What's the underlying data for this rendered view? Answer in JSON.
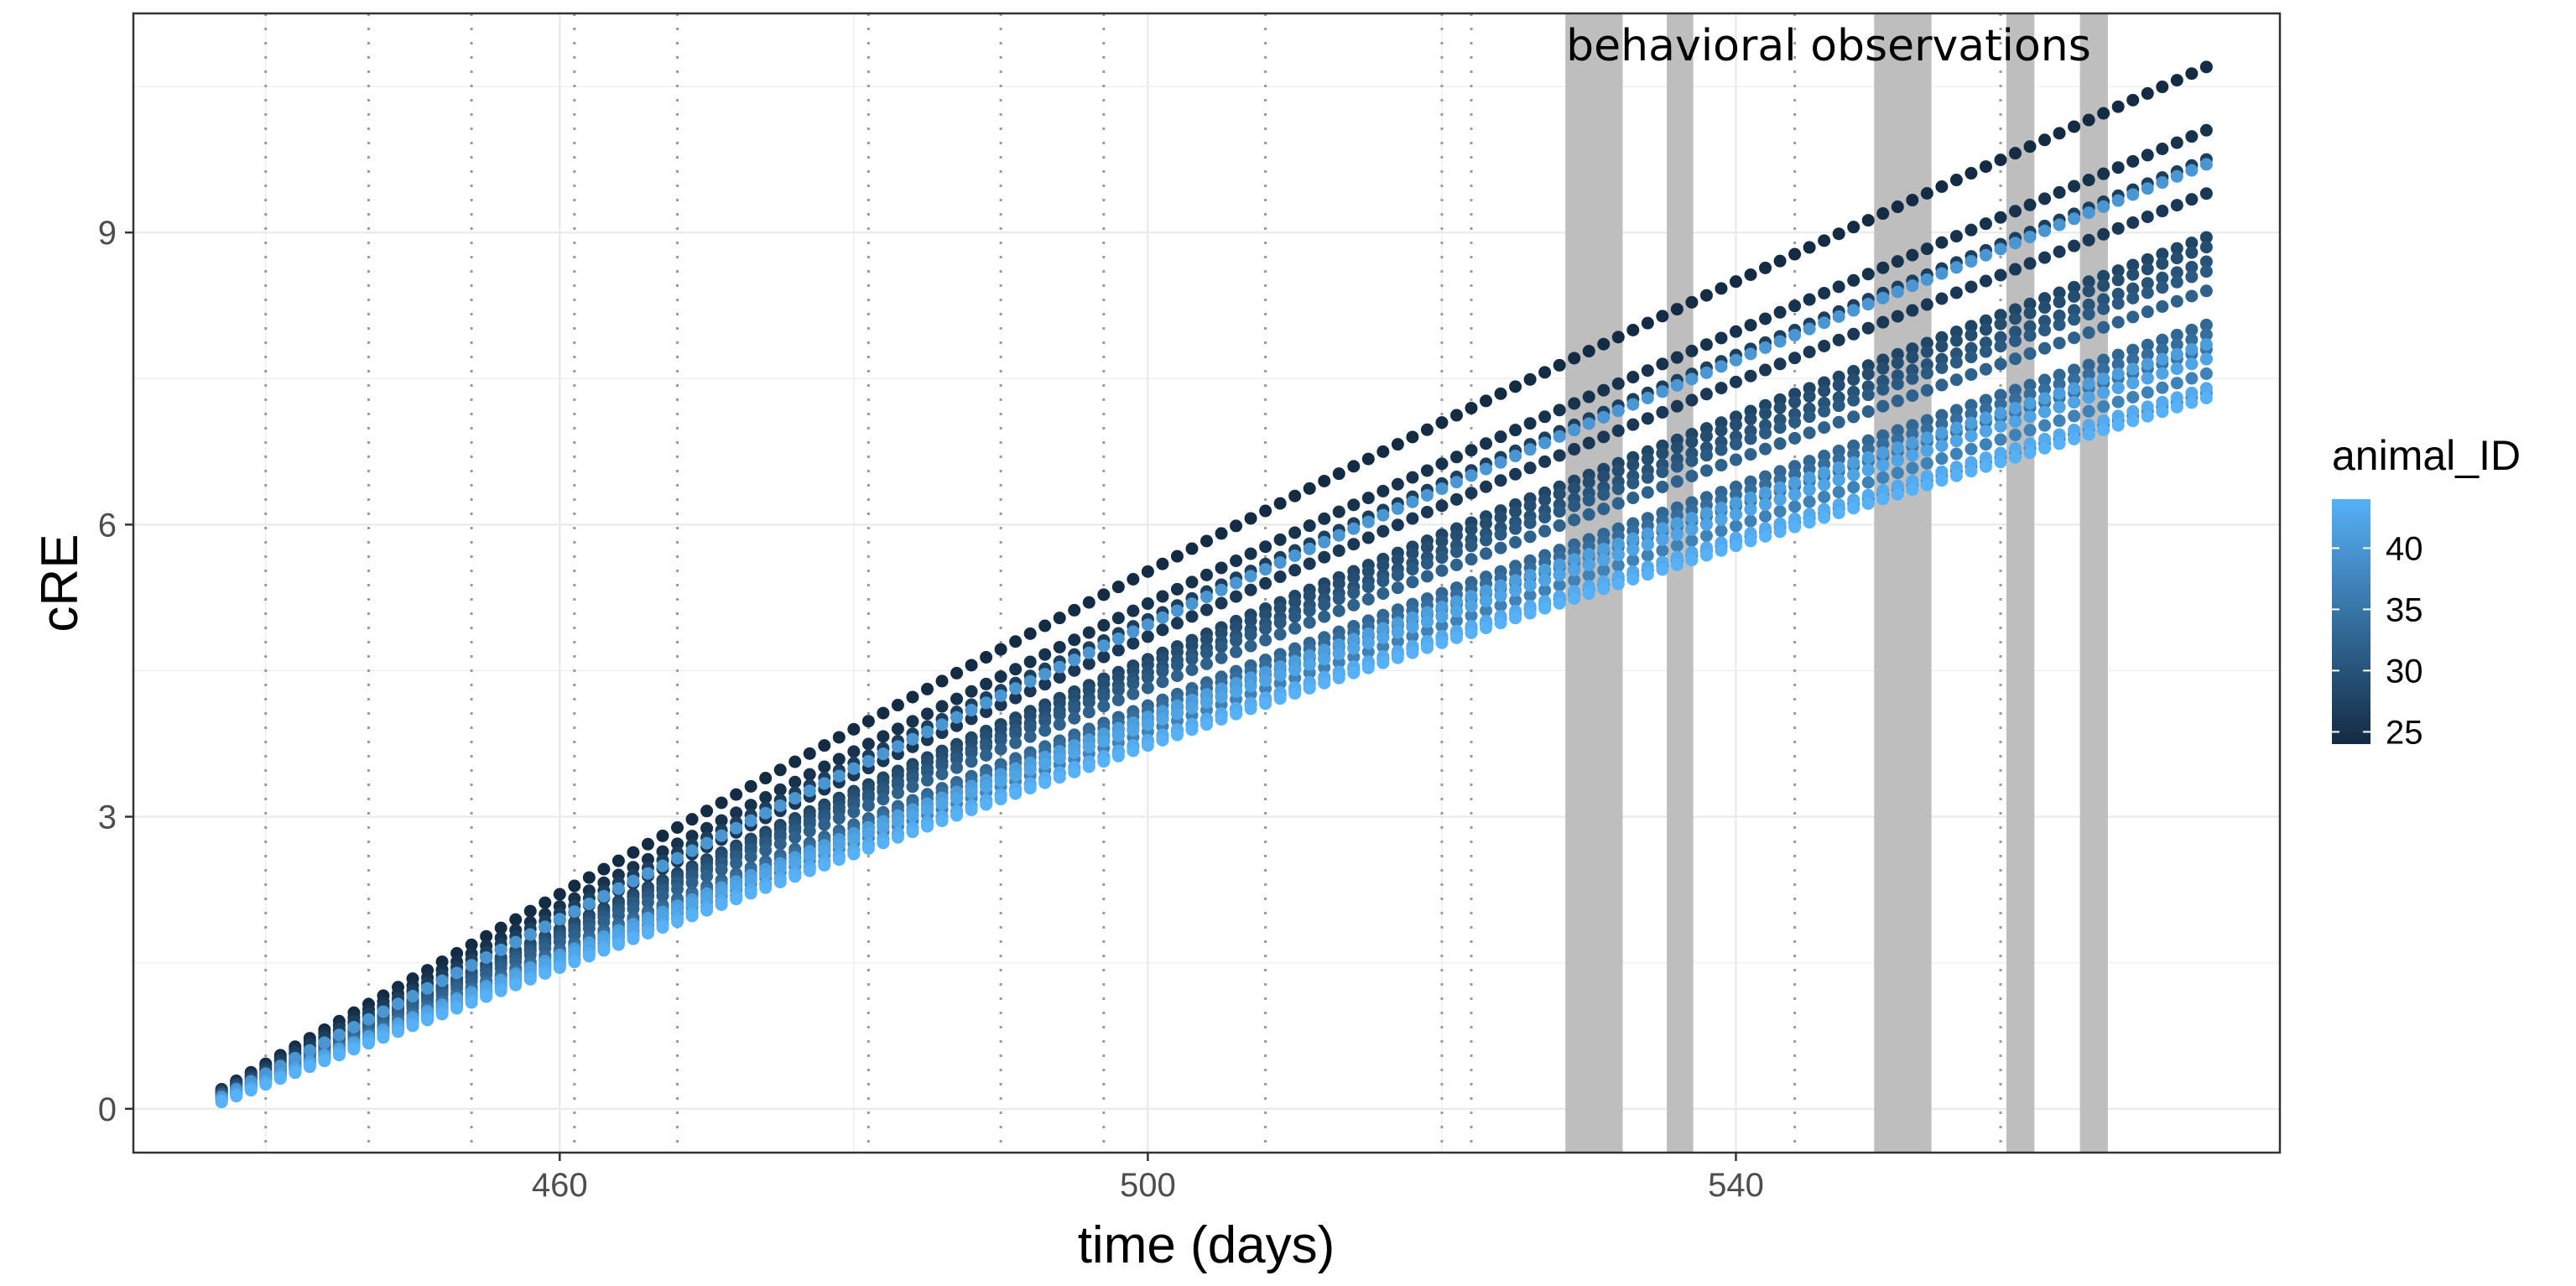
{
  "chart_data": {
    "type": "scatter",
    "title": "",
    "xlabel": "time (days)",
    "ylabel": "cRE",
    "xlim": [
      431,
      577
    ],
    "ylim": [
      -0.45,
      11.25
    ],
    "x_ticks": [
      460,
      500,
      540
    ],
    "y_ticks": [
      0,
      3,
      6,
      9
    ],
    "grid": true,
    "x_start": 437,
    "x_end": 572,
    "x_step": 1,
    "dotted_vlines": [
      440,
      447,
      454,
      461,
      468,
      481,
      490,
      497,
      508,
      520,
      522,
      530,
      537,
      544,
      553,
      558,
      564
    ],
    "shaded_regions": [
      [
        528.4,
        532.3
      ],
      [
        535.3,
        537.1
      ],
      [
        549.4,
        553.3
      ],
      [
        558.4,
        560.3
      ],
      [
        563.4,
        565.3
      ]
    ],
    "annotation": "behavioral observations",
    "legend": {
      "title": "animal_ID",
      "ticks": [
        25,
        30,
        35,
        40
      ],
      "min": 24,
      "max": 44,
      "position": "right",
      "low_color": "#132B43",
      "high_color": "#56B1F7"
    },
    "series": [
      {
        "name": "24",
        "start_value": 0.2,
        "end_value": 10.7
      },
      {
        "name": "25",
        "start_value": 0.2,
        "end_value": 10.05
      },
      {
        "name": "26",
        "start_value": 0.18,
        "end_value": 9.4
      },
      {
        "name": "27",
        "start_value": 0.18,
        "end_value": 9.75
      },
      {
        "name": "28",
        "start_value": 0.17,
        "end_value": 8.95
      },
      {
        "name": "29",
        "start_value": 0.16,
        "end_value": 8.85
      },
      {
        "name": "30",
        "start_value": 0.15,
        "end_value": 8.7
      },
      {
        "name": "31",
        "start_value": 0.15,
        "end_value": 8.6
      },
      {
        "name": "32",
        "start_value": 0.14,
        "end_value": 8.4
      },
      {
        "name": "33",
        "start_value": 0.13,
        "end_value": 8.05
      },
      {
        "name": "34",
        "start_value": 0.12,
        "end_value": 7.95
      },
      {
        "name": "35",
        "start_value": 0.12,
        "end_value": 7.8
      },
      {
        "name": "36",
        "start_value": 0.11,
        "end_value": 7.7
      },
      {
        "name": "37",
        "start_value": 0.1,
        "end_value": 7.55
      },
      {
        "name": "38",
        "start_value": 0.1,
        "end_value": 7.35
      },
      {
        "name": "40",
        "start_value": 0.12,
        "end_value": 9.7
      },
      {
        "name": "41",
        "start_value": 0.1,
        "end_value": 7.85
      },
      {
        "name": "42",
        "start_value": 0.09,
        "end_value": 7.7
      },
      {
        "name": "43",
        "start_value": 0.08,
        "end_value": 7.4
      },
      {
        "name": "44",
        "start_value": 0.07,
        "end_value": 7.3
      }
    ]
  }
}
